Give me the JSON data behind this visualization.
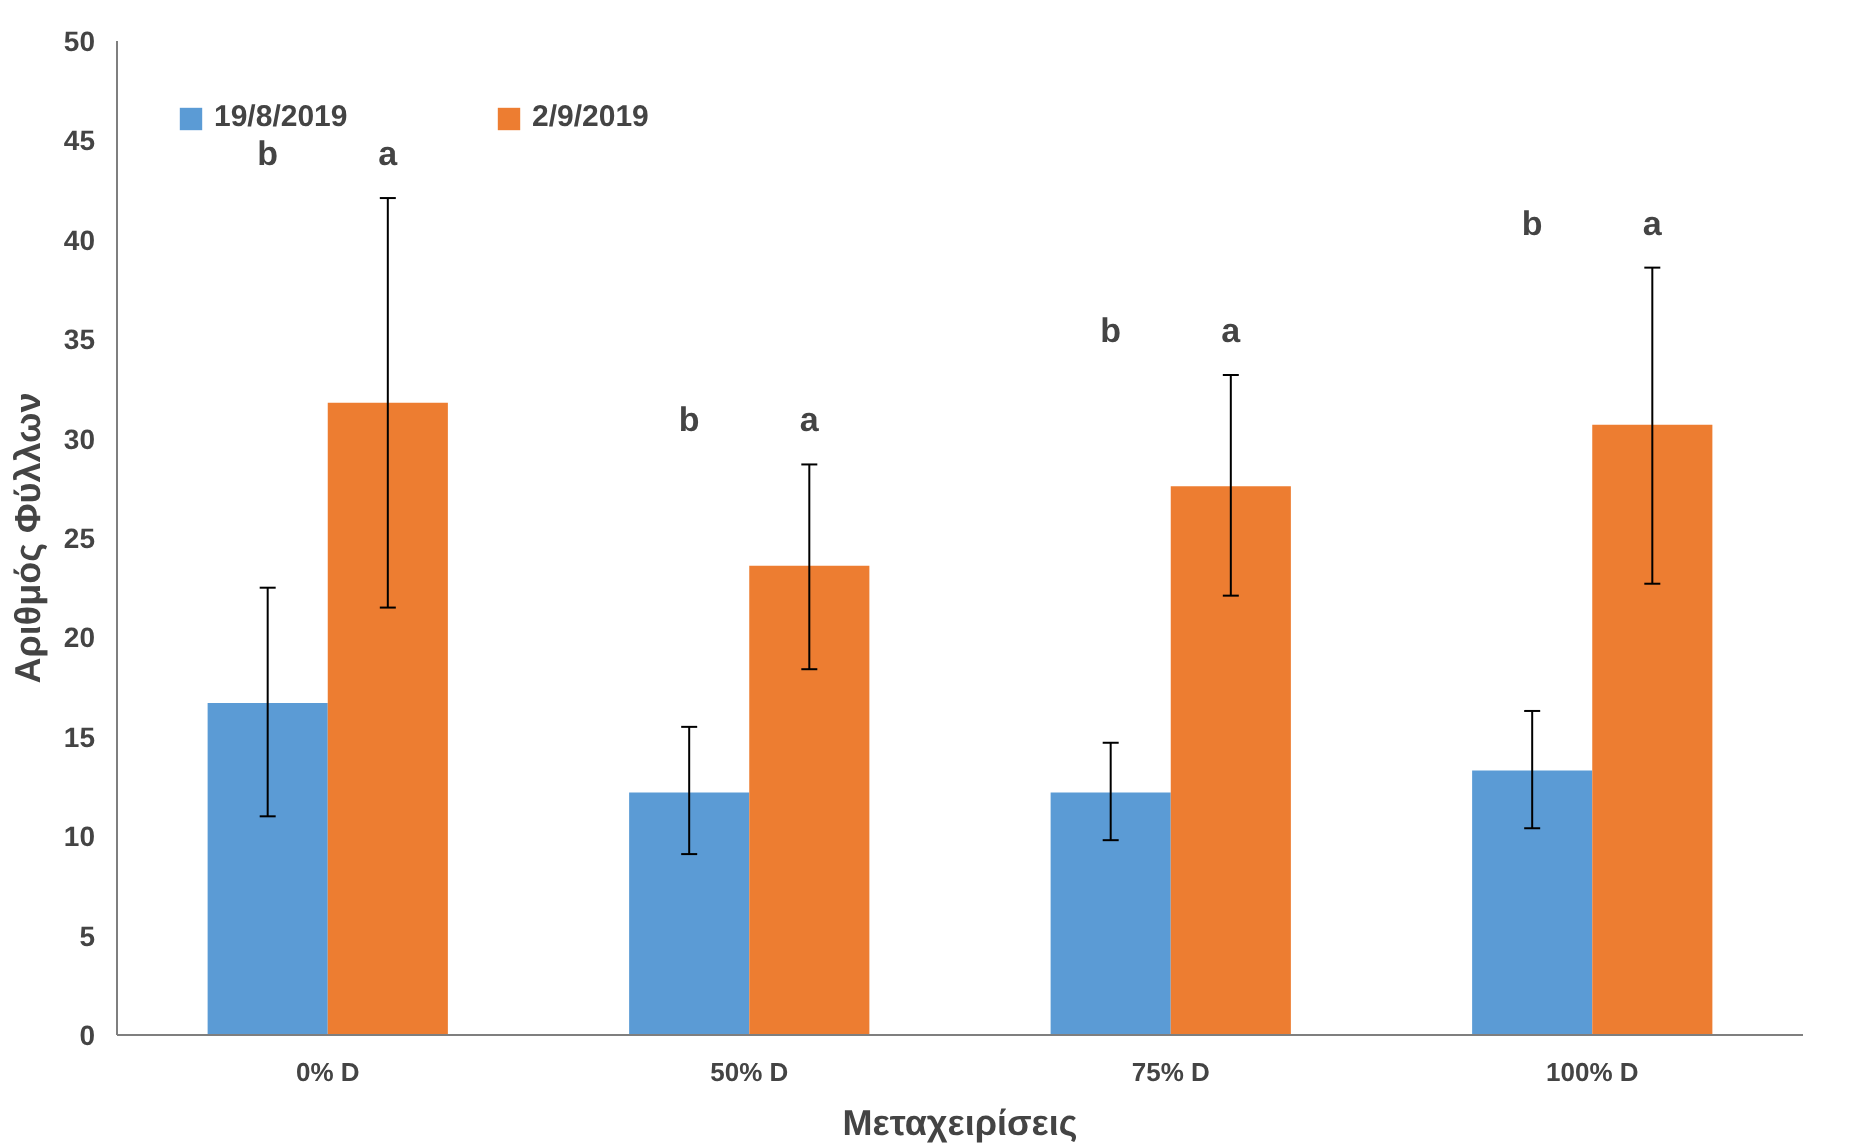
{
  "chart_data": {
    "type": "bar",
    "xlabel": "Μεταχειρίσεις",
    "ylabel": "Αριθμός Φύλλων",
    "categories": [
      "0% D",
      "50% D",
      "75% D",
      "100% D"
    ],
    "series": [
      {
        "name": "19/8/2019",
        "color": "#5b9bd5",
        "values": [
          16.7,
          12.2,
          12.2,
          13.3
        ],
        "errors": [
          [
            11.0,
            22.5
          ],
          [
            9.1,
            15.5
          ],
          [
            9.8,
            14.7
          ],
          [
            10.4,
            16.3
          ]
        ]
      },
      {
        "name": "2/9/2019",
        "color": "#ed7d31",
        "values": [
          31.8,
          23.6,
          27.6,
          30.7
        ],
        "errors": [
          [
            21.5,
            42.1
          ],
          [
            18.4,
            28.7
          ],
          [
            22.1,
            33.2
          ],
          [
            22.7,
            38.6
          ]
        ]
      }
    ],
    "ylim": [
      0,
      50
    ],
    "yticks": [
      0,
      5,
      10,
      15,
      20,
      25,
      30,
      35,
      40,
      45,
      50
    ],
    "grid": false,
    "legend": "top left",
    "annotations": [
      "b",
      "a",
      "b",
      "a",
      "b",
      "a",
      "b",
      "a"
    ]
  }
}
